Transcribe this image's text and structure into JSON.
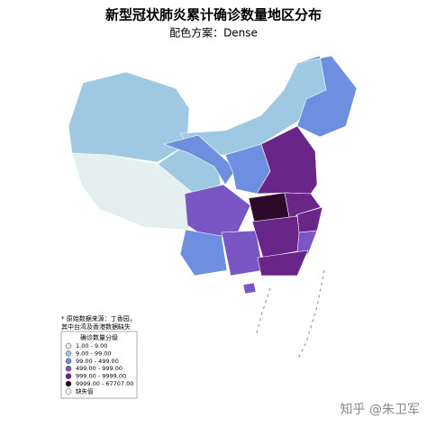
{
  "title": "新型冠状肺炎累计确诊数量地区分布",
  "subtitle": "配色方案：Dense",
  "note": [
    "* 原始数据来源：丁香园，",
    "其中台湾及香港数据缺失"
  ],
  "legend": {
    "title": "确诊数量分级",
    "items": [
      {
        "label": "1.00 - 9.00",
        "color": "#e4f0f0"
      },
      {
        "label": "9.00 - 99.00",
        "color": "#9fc9e3"
      },
      {
        "label": "99.00 - 499.00",
        "color": "#6e8fe0"
      },
      {
        "label": "499.00 - 999.00",
        "color": "#7a55c4"
      },
      {
        "label": "999.00 - 9999.00",
        "color": "#6a2589"
      },
      {
        "label": "9999.00 - 67707.00",
        "color": "#2c0a2c"
      }
    ],
    "missing": {
      "label": "缺失值",
      "color": "#ffffff"
    }
  },
  "watermark": "知乎 @朱卫军"
}
